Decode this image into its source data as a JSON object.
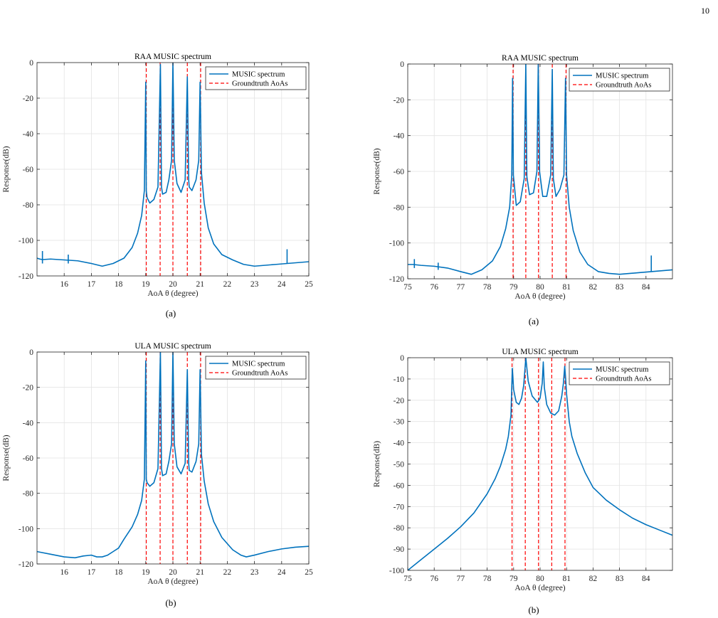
{
  "page_number": "10",
  "chart_data": [
    {
      "type": "line",
      "title": "RAA MUSIC spectrum",
      "caption": "(a)",
      "xlabel": "AoA θ (degree)",
      "ylabel": "Response(dB)",
      "xlim": [
        15,
        25
      ],
      "ylim": [
        -120,
        0
      ],
      "xticks": [
        16,
        17,
        18,
        19,
        20,
        21,
        22,
        23,
        24,
        25
      ],
      "yticks": [
        -120,
        -100,
        -80,
        -60,
        -40,
        -20,
        0
      ],
      "grid": true,
      "legend_position": "top-right",
      "series": [
        {
          "name": "MUSIC spectrum",
          "color": "#0072BD",
          "style": "solid",
          "x": [
            15,
            15.1,
            15.2,
            15.5,
            16,
            16.5,
            17,
            17.4,
            17.8,
            18.2,
            18.5,
            18.7,
            18.85,
            18.95,
            19.0,
            19.02,
            19.05,
            19.15,
            19.3,
            19.45,
            19.54,
            19.58,
            19.62,
            19.75,
            19.85,
            19.95,
            20.0,
            20.05,
            20.15,
            20.3,
            20.45,
            20.53,
            20.58,
            20.6,
            20.7,
            20.85,
            20.95,
            21.0,
            21.05,
            21.15,
            21.3,
            21.5,
            21.8,
            22.2,
            22.6,
            23.0,
            23.4,
            23.8,
            24.2,
            24.6,
            25
          ],
          "y": [
            -110,
            -110.5,
            -110.8,
            -110.5,
            -111,
            -111.5,
            -113,
            -114.5,
            -113,
            -110,
            -104,
            -96,
            -86,
            -72,
            -11,
            -72,
            -76,
            -79,
            -77,
            -70,
            -1,
            -70,
            -74,
            -73,
            -66,
            -55,
            0,
            -55,
            -68,
            -73,
            -66,
            -8,
            -66,
            -70,
            -72,
            -66,
            -55,
            -11,
            -62,
            -79,
            -93,
            -102,
            -108,
            -111,
            -113.5,
            -114.5,
            -114,
            -113.5,
            -113,
            -112.5,
            -112
          ],
          "spikes": [
            [
              15.2,
              -106,
              -113
            ],
            [
              16.15,
              -108,
              -113
            ],
            [
              24.2,
              -105,
              -113
            ]
          ]
        },
        {
          "name": "Groundtruth AoAs",
          "color": "#FF0000",
          "style": "dashed",
          "vlines": [
            19.02,
            19.53,
            20.0,
            20.53,
            21.02
          ]
        }
      ]
    },
    {
      "type": "line",
      "title": "RAA MUSIC spectrum",
      "caption": "(a)",
      "xlabel": "AoA θ (degree)",
      "ylabel": "Response(dB)",
      "xlim": [
        75,
        85
      ],
      "ylim": [
        -120,
        0
      ],
      "xticks": [
        75,
        76,
        77,
        78,
        79,
        80,
        81,
        82,
        83,
        84
      ],
      "yticks": [
        -120,
        -100,
        -80,
        -60,
        -40,
        -20,
        0
      ],
      "grid": true,
      "legend_position": "top-right",
      "series": [
        {
          "name": "MUSIC spectrum",
          "color": "#0072BD",
          "style": "solid",
          "x": [
            75,
            75.2,
            75.5,
            76,
            76.5,
            77,
            77.4,
            77.8,
            78.2,
            78.5,
            78.7,
            78.85,
            78.93,
            78.96,
            78.99,
            79.1,
            79.25,
            79.4,
            79.46,
            79.5,
            79.6,
            79.75,
            79.88,
            79.93,
            79.98,
            80.1,
            80.25,
            80.4,
            80.46,
            80.5,
            80.6,
            80.75,
            80.9,
            80.96,
            81.0,
            81.1,
            81.25,
            81.5,
            81.8,
            82.2,
            82.6,
            83.0,
            83.4,
            83.8,
            84.2,
            84.6,
            85
          ],
          "y": [
            -112,
            -112,
            -112.5,
            -113,
            -114,
            -116,
            -117.5,
            -115,
            -110,
            -102,
            -92,
            -80,
            -62,
            -8,
            -62,
            -79,
            -77,
            -64,
            0,
            -63,
            -73,
            -72,
            -60,
            0,
            -60,
            -74,
            -74,
            -62,
            -3,
            -64,
            -74,
            -70,
            -62,
            -8,
            -62,
            -80,
            -93,
            -105,
            -112,
            -116,
            -117,
            -117.5,
            -117,
            -116.5,
            -116,
            -115.5,
            -115
          ],
          "spikes": [
            [
              75.25,
              -109,
              -114
            ],
            [
              76.15,
              -111,
              -115
            ],
            [
              84.2,
              -107,
              -116
            ]
          ]
        },
        {
          "name": "Groundtruth AoAs",
          "color": "#FF0000",
          "style": "dashed",
          "vlines": [
            78.98,
            79.46,
            79.94,
            80.46,
            80.98
          ]
        }
      ]
    },
    {
      "type": "line",
      "title": "ULA MUSIC spectrum",
      "caption": "(b)",
      "xlabel": "AoA θ (degree)",
      "ylabel": "Response(dB)",
      "xlim": [
        15,
        25
      ],
      "ylim": [
        -120,
        0
      ],
      "xticks": [
        16,
        17,
        18,
        19,
        20,
        21,
        22,
        23,
        24,
        25
      ],
      "yticks": [
        -120,
        -100,
        -80,
        -60,
        -40,
        -20,
        0
      ],
      "grid": true,
      "legend_position": "top-right",
      "series": [
        {
          "name": "MUSIC spectrum",
          "color": "#0072BD",
          "style": "solid",
          "x": [
            15,
            15.5,
            16,
            16.4,
            16.7,
            17.0,
            17.2,
            17.4,
            17.6,
            17.8,
            18.0,
            18.2,
            18.5,
            18.7,
            18.85,
            18.95,
            19.0,
            19.02,
            19.05,
            19.15,
            19.3,
            19.45,
            19.54,
            19.58,
            19.62,
            19.75,
            19.85,
            19.95,
            20.0,
            20.05,
            20.15,
            20.3,
            20.45,
            20.53,
            20.58,
            20.6,
            20.7,
            20.85,
            20.95,
            21.0,
            21.05,
            21.15,
            21.3,
            21.5,
            21.8,
            22.2,
            22.5,
            22.7,
            23.0,
            23.5,
            24.0,
            24.5,
            25
          ],
          "y": [
            -113,
            -114.5,
            -116,
            -116.5,
            -115.5,
            -115,
            -116,
            -116,
            -115,
            -113,
            -111,
            -106,
            -99,
            -92,
            -84,
            -72,
            -5,
            -72,
            -74,
            -76,
            -74,
            -66,
            0,
            -66,
            -70,
            -69,
            -62,
            -52,
            0,
            -52,
            -65,
            -69,
            -63,
            -10,
            -63,
            -67,
            -68,
            -62,
            -52,
            -10,
            -58,
            -73,
            -86,
            -96,
            -105,
            -112,
            -115,
            -116,
            -115,
            -113,
            -111.5,
            -110.5,
            -110
          ]
        },
        {
          "name": "Groundtruth AoAs",
          "color": "#FF0000",
          "style": "dashed",
          "vlines": [
            19.02,
            19.53,
            20.0,
            20.53,
            21.02
          ]
        }
      ]
    },
    {
      "type": "line",
      "title": "ULA MUSIC spectrum",
      "caption": "(b)",
      "xlabel": "AoA θ (degree)",
      "ylabel": "Response(dB)",
      "xlim": [
        75,
        85
      ],
      "ylim": [
        -100,
        0
      ],
      "xticks": [
        75,
        76,
        77,
        78,
        79,
        80,
        81,
        82,
        83,
        84
      ],
      "yticks": [
        -100,
        -90,
        -80,
        -70,
        -60,
        -50,
        -40,
        -30,
        -20,
        -10,
        0
      ],
      "grid": true,
      "legend_position": "top-right",
      "series": [
        {
          "name": "MUSIC spectrum",
          "color": "#0072BD",
          "style": "solid",
          "x": [
            75,
            75.5,
            76,
            76.5,
            77,
            77.5,
            78,
            78.3,
            78.5,
            78.7,
            78.8,
            78.9,
            78.95,
            79.0,
            79.1,
            79.2,
            79.3,
            79.38,
            79.43,
            79.46,
            79.55,
            79.7,
            79.9,
            80.0,
            80.08,
            80.12,
            80.16,
            80.25,
            80.4,
            80.55,
            80.7,
            80.82,
            80.88,
            80.93,
            81.0,
            81.1,
            81.2,
            81.4,
            81.7,
            82.0,
            82.5,
            83.0,
            83.5,
            84.0,
            84.5,
            85
          ],
          "y": [
            -100,
            -95,
            -90,
            -85,
            -79.5,
            -73,
            -64,
            -57,
            -51,
            -43,
            -37,
            -27,
            -5,
            -15,
            -21,
            -22,
            -19,
            -13,
            -5,
            0,
            -11,
            -18,
            -21,
            -19,
            -12,
            -2,
            -14,
            -22,
            -26,
            -27,
            -25,
            -18,
            -12,
            -4,
            -17,
            -30,
            -37,
            -45,
            -54,
            -61,
            -67,
            -71.5,
            -75.5,
            -78.5,
            -81,
            -83.5
          ]
        },
        {
          "name": "Groundtruth AoAs",
          "color": "#FF0000",
          "style": "dashed",
          "vlines": [
            78.94,
            79.44,
            79.94,
            80.44,
            80.94
          ]
        }
      ]
    }
  ]
}
